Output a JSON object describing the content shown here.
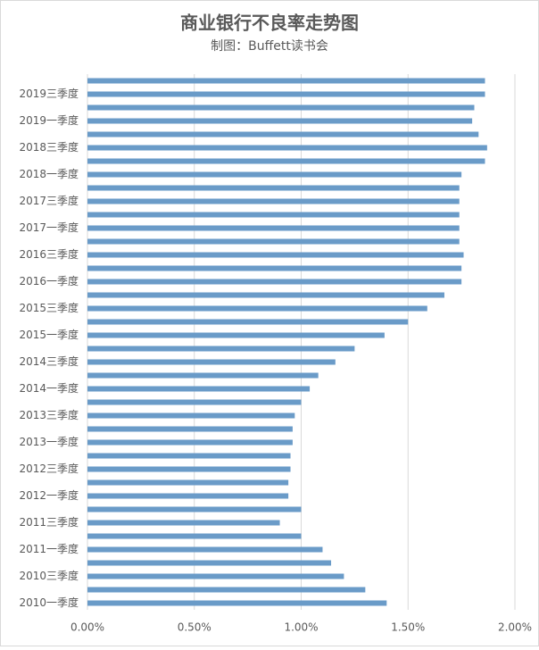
{
  "chart_data": {
    "type": "barh",
    "title": "商业银行不良率走势图",
    "subtitle": "制图：Buffett读书会",
    "categories": [
      "2010一季度",
      null,
      "2010三季度",
      null,
      "2011一季度",
      null,
      "2011三季度",
      null,
      "2012一季度",
      null,
      "2012三季度",
      null,
      "2013一季度",
      null,
      "2013三季度",
      null,
      "2014一季度",
      null,
      "2014三季度",
      null,
      "2015一季度",
      null,
      "2015三季度",
      null,
      "2016一季度",
      null,
      "2016三季度",
      null,
      "2017一季度",
      null,
      "2017三季度",
      null,
      "2018一季度",
      null,
      "2018三季度",
      null,
      "2019一季度",
      null,
      "2019三季度",
      null
    ],
    "values": [
      1.4,
      1.3,
      1.2,
      1.14,
      1.1,
      1.0,
      0.9,
      1.0,
      0.94,
      0.94,
      0.95,
      0.95,
      0.96,
      0.96,
      0.97,
      1.0,
      1.04,
      1.08,
      1.16,
      1.25,
      1.39,
      1.5,
      1.59,
      1.67,
      1.75,
      1.75,
      1.76,
      1.74,
      1.74,
      1.74,
      1.74,
      1.74,
      1.75,
      1.86,
      1.87,
      1.83,
      1.8,
      1.81,
      1.86,
      1.86
    ],
    "color": "#6a9bc8",
    "xlim": [
      0,
      2
    ],
    "xticks": [
      {
        "value": 0,
        "label": "0.00%"
      },
      {
        "value": 0.5,
        "label": "0.50%"
      },
      {
        "value": 1,
        "label": "1.00%"
      },
      {
        "value": 1.5,
        "label": "1.50%"
      },
      {
        "value": 2,
        "label": "2.00%"
      }
    ],
    "grid": true
  }
}
